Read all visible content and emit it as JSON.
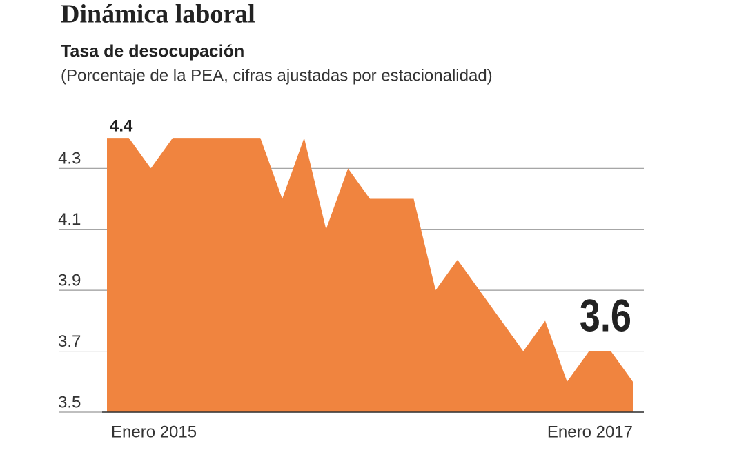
{
  "chart_data": {
    "type": "area",
    "title": "Dinámica laboral",
    "subtitle": "Tasa de desocupación",
    "note": "(Porcentaje de la PEA, cifras ajustadas por estacionalidad)",
    "categories": [
      "Enero 2015",
      null,
      null,
      null,
      null,
      null,
      null,
      null,
      null,
      null,
      null,
      null,
      null,
      null,
      null,
      null,
      null,
      null,
      null,
      null,
      null,
      null,
      null,
      null,
      "Enero 2017"
    ],
    "values": [
      4.4,
      4.4,
      4.3,
      4.4,
      4.4,
      4.4,
      4.4,
      4.4,
      4.2,
      4.4,
      4.1,
      4.3,
      4.2,
      4.2,
      4.2,
      3.9,
      4.0,
      3.9,
      3.8,
      3.7,
      3.8,
      3.6,
      3.7,
      3.7,
      3.6
    ],
    "color": "#f0843f",
    "ylim": [
      3.5,
      4.45
    ],
    "yticks": [
      3.5,
      3.7,
      3.9,
      4.1,
      4.3
    ],
    "grid": true
  }
}
